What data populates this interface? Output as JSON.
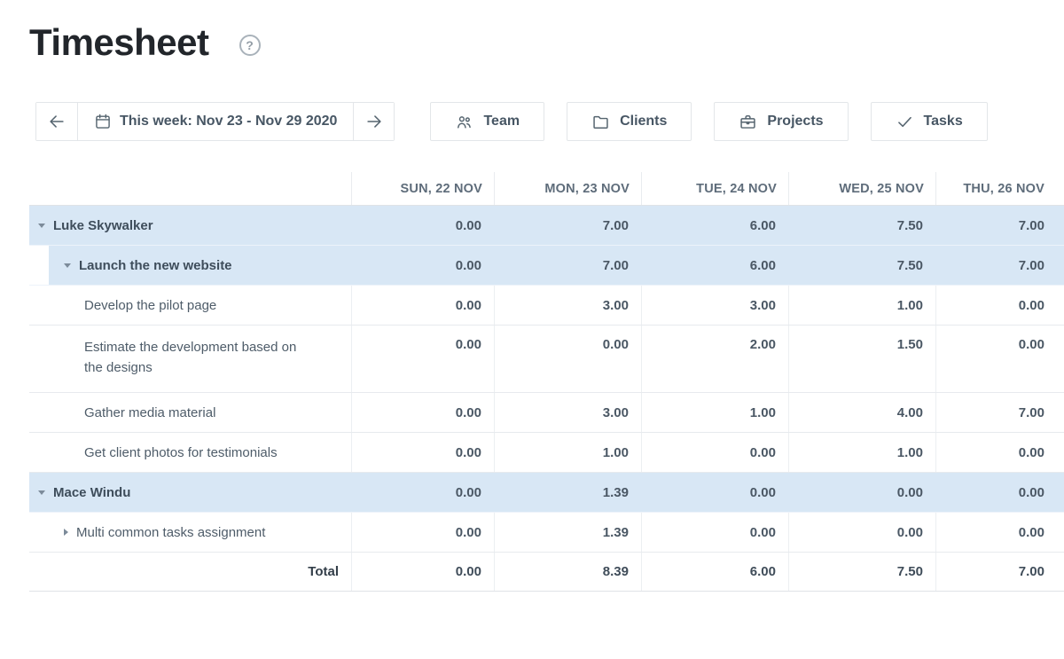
{
  "header": {
    "title": "Timesheet",
    "help_label": "?"
  },
  "toolbar": {
    "week_label": "This week: Nov 23 - Nov 29 2020",
    "buttons": [
      {
        "icon": "team-icon",
        "label": "Team"
      },
      {
        "icon": "folder-icon",
        "label": "Clients"
      },
      {
        "icon": "briefcase-icon",
        "label": "Projects"
      },
      {
        "icon": "check-icon",
        "label": "Tasks"
      }
    ]
  },
  "table": {
    "day_columns": [
      "SUN, 22 NOV",
      "MON, 23 NOV",
      "TUE, 24 NOV",
      "WED, 25 NOV",
      "THU, 26 NOV"
    ],
    "rows": [
      {
        "label": "Luke Skywalker",
        "type": "person",
        "indent": 0,
        "expander": "expanded",
        "values": [
          "0.00",
          "7.00",
          "6.00",
          "7.50",
          "7.00"
        ]
      },
      {
        "label": "Launch the new website",
        "type": "project",
        "indent": 1,
        "expander": "expanded",
        "values": [
          "0.00",
          "7.00",
          "6.00",
          "7.50",
          "7.00"
        ]
      },
      {
        "label": "Develop the pilot page",
        "type": "task",
        "indent": 2,
        "expander": null,
        "values": [
          "0.00",
          "3.00",
          "3.00",
          "1.00",
          "0.00"
        ]
      },
      {
        "label": "Estimate the development based on the designs",
        "type": "task",
        "indent": 2,
        "expander": null,
        "values": [
          "0.00",
          "0.00",
          "2.00",
          "1.50",
          "0.00"
        ]
      },
      {
        "label": "Gather media material",
        "type": "task",
        "indent": 2,
        "expander": null,
        "values": [
          "0.00",
          "3.00",
          "1.00",
          "4.00",
          "7.00"
        ]
      },
      {
        "label": "Get client photos for testimonials",
        "type": "task",
        "indent": 2,
        "expander": null,
        "values": [
          "0.00",
          "1.00",
          "0.00",
          "1.00",
          "0.00"
        ]
      },
      {
        "label": "Mace Windu",
        "type": "person",
        "indent": 0,
        "expander": "expanded",
        "values": [
          "0.00",
          "1.39",
          "0.00",
          "0.00",
          "0.00"
        ]
      },
      {
        "label": "Multi common tasks assignment",
        "type": "project",
        "indent": 1,
        "expander": "collapsed",
        "values": [
          "0.00",
          "1.39",
          "0.00",
          "0.00",
          "0.00"
        ]
      }
    ],
    "total": {
      "label": "Total",
      "values": [
        "0.00",
        "8.39",
        "6.00",
        "7.50",
        "7.00"
      ]
    }
  },
  "colors": {
    "row_highlight": "#d8e7f5",
    "toolbar_text": "#475664",
    "header_text": "#5e6c7a",
    "value_text": "#4a5764"
  }
}
